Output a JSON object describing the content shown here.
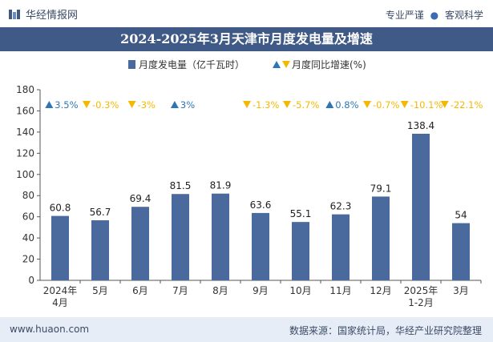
{
  "header": {
    "brand": "华经情报网",
    "right_text_1": "专业严谨",
    "separator": "●",
    "right_text_2": "客观科学",
    "logo_icon": "huajing-logo-icon"
  },
  "title": "2024-2025年3月天津市月度发电量及增速",
  "footer": {
    "website": "www.huaon.com",
    "source": "数据来源：国家统计局，华经产业研究院整理"
  },
  "colors": {
    "bar": "#4a6a9e",
    "up": "#2e75b6",
    "down": "#f5b800",
    "title_bg": "#3f5a86",
    "footer_bg": "#e6edf6"
  },
  "chart_data": {
    "type": "bar",
    "categories": [
      "2024年\n4月",
      "5月",
      "6月",
      "7月",
      "8月",
      "9月",
      "10月",
      "11月",
      "12月",
      "2025年\n1-2月",
      "3月"
    ],
    "series": [
      {
        "name": "月度发电量（亿千瓦时）",
        "values": [
          60.8,
          56.7,
          69.4,
          81.5,
          81.9,
          63.6,
          55.1,
          62.3,
          79.1,
          138.4,
          54
        ]
      }
    ],
    "growth": {
      "name": "月度同比增速(%)",
      "labels": [
        "3.5%",
        "-0.3%",
        "-3%",
        "3%",
        "",
        "-1.3%",
        "-5.7%",
        "0.8%",
        "-0.7%",
        "-10.1%",
        "-22.1%"
      ],
      "directions": [
        "up",
        "down",
        "down",
        "up",
        "",
        "down",
        "down",
        "up",
        "down",
        "down",
        "down"
      ]
    },
    "ylim": [
      0,
      180
    ],
    "yticks": [
      0,
      20,
      40,
      60,
      80,
      100,
      120,
      140,
      160,
      180
    ],
    "legend_position": "top-center",
    "grid": false
  }
}
